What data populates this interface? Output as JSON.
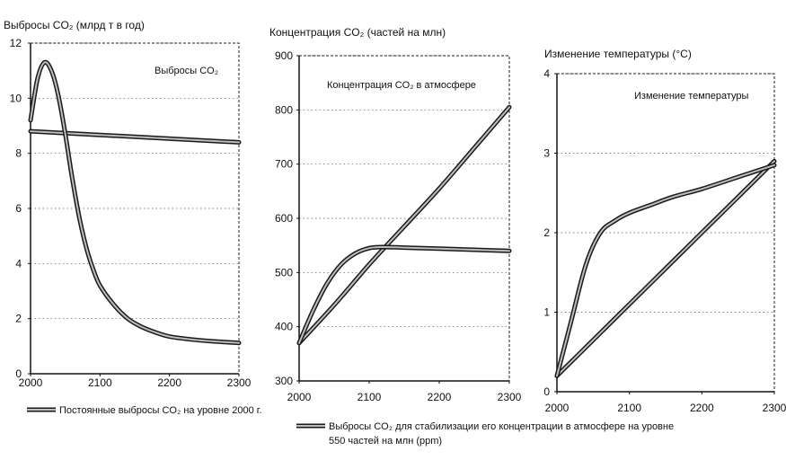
{
  "chart_data": [
    {
      "type": "line",
      "title": "Выбросы CO₂ (млрд т в год)",
      "inner_label": "Выбросы CO₂",
      "x_ticks": [
        2000,
        2100,
        2200,
        2300
      ],
      "y_ticks": [
        0,
        2,
        4,
        6,
        8,
        10,
        12
      ],
      "xlim": [
        2000,
        2300
      ],
      "ylim": [
        0,
        12
      ],
      "grid": true,
      "series": [
        {
          "key": "constant",
          "x": [
            2000,
            2300
          ],
          "y": [
            8.8,
            8.4
          ]
        },
        {
          "key": "stabilization",
          "x": [
            2000,
            2010,
            2020,
            2030,
            2040,
            2050,
            2060,
            2070,
            2080,
            2090,
            2100,
            2120,
            2140,
            2160,
            2180,
            2200,
            2230,
            2260,
            2300
          ],
          "y": [
            9.2,
            10.7,
            11.3,
            11.0,
            10.1,
            8.7,
            7.1,
            5.7,
            4.6,
            3.8,
            3.2,
            2.5,
            2.0,
            1.7,
            1.5,
            1.35,
            1.25,
            1.18,
            1.12
          ]
        }
      ]
    },
    {
      "type": "line",
      "title": "Концентрация CO₂ (частей на млн)",
      "inner_label": "Концентрация CO₂ в атмосфере",
      "x_ticks": [
        2000,
        2100,
        2200,
        2300
      ],
      "y_ticks": [
        300,
        400,
        500,
        600,
        700,
        800,
        900
      ],
      "xlim": [
        2000,
        2300
      ],
      "ylim": [
        300,
        900
      ],
      "grid": true,
      "series": [
        {
          "key": "constant",
          "x": [
            2000,
            2050,
            2100,
            2150,
            2200,
            2250,
            2300
          ],
          "y": [
            370,
            440,
            515,
            585,
            655,
            730,
            805
          ]
        },
        {
          "key": "stabilization",
          "x": [
            2000,
            2020,
            2040,
            2060,
            2080,
            2100,
            2120,
            2150,
            2200,
            2250,
            2300
          ],
          "y": [
            370,
            430,
            480,
            515,
            535,
            545,
            547,
            546,
            544,
            542,
            540
          ]
        }
      ]
    },
    {
      "type": "line",
      "title": "Изменение температуры (°С)",
      "inner_label": "Изменение температуры",
      "x_ticks": [
        2000,
        2100,
        2200,
        2300
      ],
      "y_ticks": [
        0,
        1,
        2,
        3,
        4
      ],
      "xlim": [
        2000,
        2300
      ],
      "ylim": [
        0,
        4
      ],
      "grid": true,
      "series": [
        {
          "key": "constant",
          "x": [
            2000,
            2050,
            2100,
            2150,
            2200,
            2250,
            2300
          ],
          "y": [
            0.2,
            0.65,
            1.1,
            1.55,
            2.0,
            2.45,
            2.9
          ]
        },
        {
          "key": "stabilization",
          "x": [
            2000,
            2020,
            2040,
            2060,
            2080,
            2100,
            2130,
            2160,
            2200,
            2250,
            2300
          ],
          "y": [
            0.2,
            0.9,
            1.6,
            2.0,
            2.15,
            2.25,
            2.35,
            2.45,
            2.55,
            2.7,
            2.85
          ]
        }
      ]
    }
  ],
  "legend": {
    "items": [
      {
        "key": "constant",
        "label": "Постоянные выбросы CO₂ на уровне 2000 г."
      },
      {
        "key": "stabilization",
        "label_line1": "Выбросы CO₂ для стабилизации его концентрации в атмосфере на уровне",
        "label_line2": "550 частей на млн (ppm)"
      }
    ]
  },
  "colors": {
    "line_outer": "#1a1a1a",
    "line_inner": "#bdbdbd",
    "frame": "#222222"
  }
}
